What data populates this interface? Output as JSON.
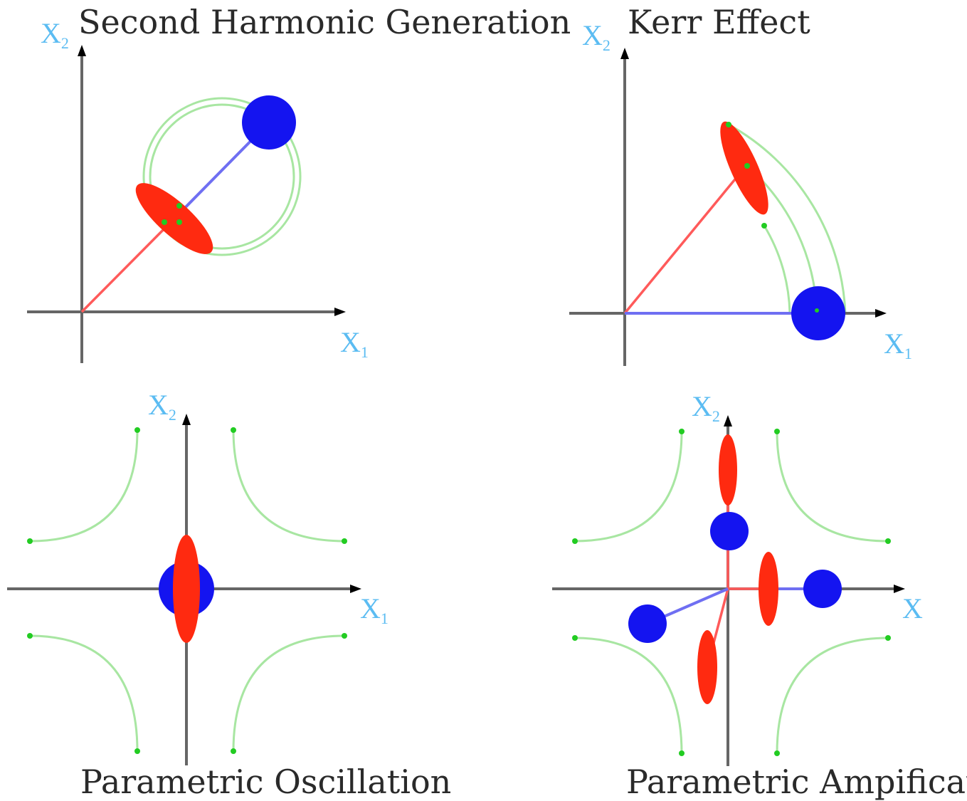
{
  "panels": {
    "shg": {
      "title": "Second Harmonic Generation",
      "xlabel_main": "X",
      "xlabel_sub": "1",
      "ylabel_main": "X",
      "ylabel_sub": "2"
    },
    "kerr": {
      "title": "Kerr Effect",
      "xlabel_main": "X",
      "xlabel_sub": "1",
      "ylabel_main": "X",
      "ylabel_sub": "2"
    },
    "po": {
      "title": "Parametric Oscillation",
      "xlabel_main": "X",
      "xlabel_sub": "1",
      "ylabel_main": "X",
      "ylabel_sub": "2"
    },
    "pa": {
      "title": "Parametric Ampification",
      "xlabel_main": "X",
      "xlabel_sub": "",
      "ylabel_main": "X",
      "ylabel_sub": "2"
    }
  },
  "colors": {
    "coherent_state": "#1414f0",
    "squeezed_state": "#ff2a10",
    "trajectory": "#a8e6a2",
    "trajectory_dot": "#22cc22",
    "axis": "#666666",
    "label": "#5bbcf2"
  }
}
